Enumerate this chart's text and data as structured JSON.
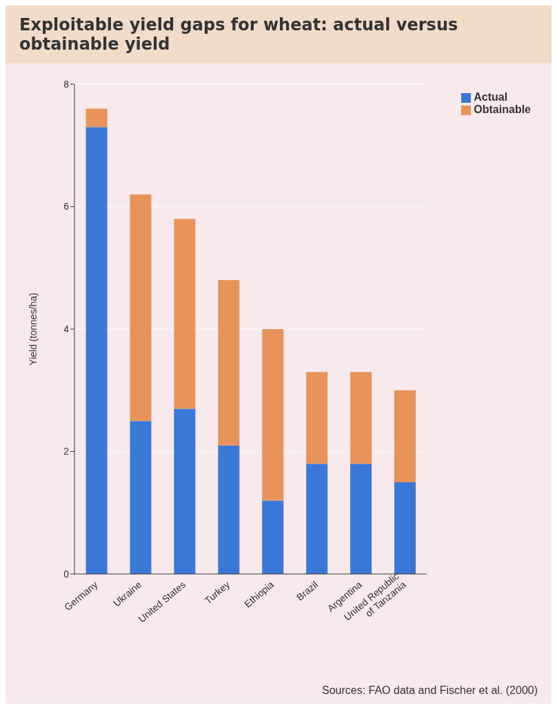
{
  "chart_data": {
    "type": "bar",
    "title": "Exploitable yield gaps for wheat: actual versus obtainable yield",
    "ylabel": "Yield (tonnes/ha)",
    "categories": [
      "Germany",
      "Ukraine",
      "United States",
      "Turkey",
      "Ethiopia",
      "Brazil",
      "Argentina",
      "United Republic of Tanzania"
    ],
    "series": [
      {
        "name": "Actual",
        "color": "#3a78d8",
        "values": [
          7.3,
          2.5,
          2.7,
          2.1,
          1.2,
          1.8,
          1.8,
          1.5
        ]
      },
      {
        "name": "Obtainable",
        "color": "#e8935a",
        "values": [
          0.3,
          3.7,
          3.1,
          2.7,
          2.8,
          1.5,
          1.5,
          1.5
        ]
      }
    ],
    "stacked": true,
    "ylim": [
      0,
      8
    ],
    "yticks": [
      0,
      2,
      4,
      6,
      8
    ],
    "grid": "y",
    "legend": "top right",
    "annotations": [
      "Sources: FAO data and Fischer et al. (2000)"
    ]
  }
}
